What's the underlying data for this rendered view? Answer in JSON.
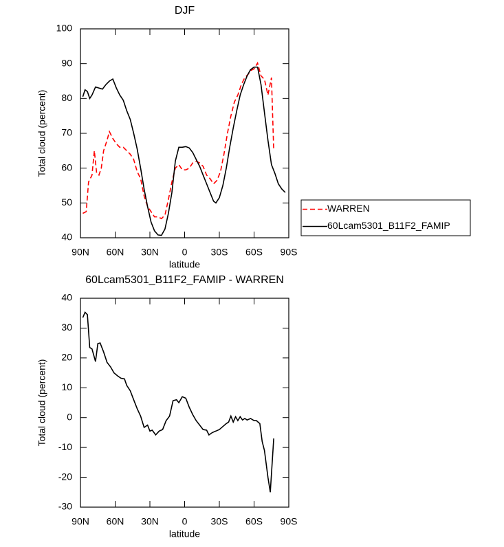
{
  "chart_data": [
    {
      "type": "line",
      "title": "DJF",
      "xlabel": "latitude",
      "ylabel": "Total cloud (percent)",
      "xlim": [
        90,
        -90
      ],
      "ylim": [
        40,
        100
      ],
      "xticks": [
        {
          "value": 90,
          "label": "90N"
        },
        {
          "value": 60,
          "label": "60N"
        },
        {
          "value": 30,
          "label": "30N"
        },
        0,
        {
          "value": -30,
          "label": "30S"
        },
        {
          "value": -60,
          "label": "60S"
        },
        {
          "value": -90,
          "label": "90S"
        }
      ],
      "yticks": [
        40,
        50,
        60,
        70,
        80,
        90,
        100
      ],
      "legend": "right",
      "series": [
        {
          "name": "WARREN",
          "color": "#ff0000",
          "linestyle": "dashed",
          "x": [
            88,
            85,
            83,
            80,
            78,
            76,
            74,
            72,
            70,
            67,
            65,
            62,
            59,
            56,
            53,
            50,
            47,
            44,
            41,
            38,
            35,
            32,
            29,
            26,
            23,
            20,
            17,
            14,
            11,
            8,
            5,
            2,
            -1,
            -4,
            -7,
            -10,
            -13,
            -16,
            -19,
            -22,
            -25,
            -28,
            -31,
            -34,
            -37,
            -40,
            -43,
            -46,
            -49,
            -52,
            -55,
            -57,
            -60,
            -63,
            -66,
            -69,
            -72,
            -75,
            -77
          ],
          "values": [
            47,
            47.5,
            56,
            58,
            65,
            58.5,
            58,
            60,
            65,
            68,
            70.5,
            68.5,
            67,
            66,
            66,
            65,
            64,
            62.5,
            59,
            57,
            52,
            49,
            47.5,
            46,
            46,
            45.5,
            46.5,
            51,
            56,
            60,
            61,
            59.5,
            59.5,
            60,
            61.5,
            62,
            61.5,
            60.5,
            58,
            57,
            55.5,
            56.5,
            59,
            64,
            70,
            75,
            79,
            81,
            84,
            86,
            87,
            88,
            88.5,
            90.2,
            86.5,
            85.5,
            81,
            86,
            65
          ]
        },
        {
          "name": "60Lcam5301_B11F2_FAMIP",
          "color": "#000000",
          "linestyle": "solid",
          "x": [
            88,
            86,
            84,
            82,
            80,
            77,
            74,
            71,
            68,
            65,
            62,
            59,
            56,
            53,
            50,
            47,
            44,
            41,
            38,
            35,
            32,
            29,
            26,
            23,
            20,
            17,
            14,
            11,
            8,
            5,
            2,
            -1,
            -4,
            -7,
            -10,
            -13,
            -16,
            -19,
            -22,
            -25,
            -27,
            -30,
            -33,
            -36,
            -39,
            -42,
            -45,
            -48,
            -51,
            -54,
            -57,
            -60,
            -63,
            -66,
            -69,
            -72,
            -75,
            -78,
            -81,
            -84,
            -87
          ],
          "values": [
            80.5,
            82.5,
            82,
            80,
            81,
            83.3,
            83,
            82.7,
            84,
            85,
            85.6,
            83,
            81,
            79.5,
            76.5,
            74,
            70,
            65.5,
            60,
            54,
            49,
            44.5,
            42,
            40.8,
            40.7,
            42.5,
            47,
            53,
            62,
            66,
            66,
            66.2,
            65.8,
            64.5,
            62.5,
            60.5,
            58,
            55.5,
            53,
            50.5,
            50,
            51.5,
            55,
            60,
            66,
            71.5,
            76.5,
            81,
            84,
            86.5,
            88.3,
            89,
            89,
            84,
            76,
            68,
            61,
            58.5,
            55.5,
            54,
            53
          ]
        }
      ]
    },
    {
      "type": "line",
      "title": "60Lcam5301_B11F2_FAMIP - WARREN",
      "xlabel": "latitude",
      "ylabel": "Total cloud (percent)",
      "xlim": [
        90,
        -90
      ],
      "ylim": [
        -30,
        40
      ],
      "xticks": [
        {
          "value": 90,
          "label": "90N"
        },
        {
          "value": 60,
          "label": "60N"
        },
        {
          "value": 30,
          "label": "30N"
        },
        0,
        {
          "value": -30,
          "label": "30S"
        },
        {
          "value": -60,
          "label": "60S"
        },
        {
          "value": -90,
          "label": "90S"
        }
      ],
      "yticks": [
        -30,
        -20,
        -10,
        0,
        10,
        20,
        30,
        40
      ],
      "color": "#000000",
      "x": [
        88,
        86,
        84,
        82,
        80,
        77,
        75,
        73,
        70,
        67,
        64,
        61,
        58,
        55,
        52,
        50,
        47,
        44,
        41,
        38,
        35,
        32,
        30,
        28,
        25,
        22,
        19,
        16,
        13,
        10,
        7,
        5,
        2,
        -1,
        -4,
        -7,
        -10,
        -13,
        -16,
        -19,
        -21,
        -24,
        -27,
        -30,
        -33,
        -36,
        -38,
        -40,
        -42,
        -44,
        -46,
        -48,
        -50,
        -52,
        -54,
        -57,
        -60,
        -62,
        -65,
        -67,
        -69,
        -72,
        -74,
        -77
      ],
      "values": [
        33.5,
        35.3,
        34.5,
        23.5,
        23,
        18.8,
        24.8,
        25,
        22,
        18.5,
        17,
        15,
        14,
        13.2,
        13,
        10.8,
        9,
        6,
        3,
        0.5,
        -3.3,
        -2.5,
        -4.5,
        -4.2,
        -5.8,
        -4.5,
        -4,
        -1,
        0.5,
        5.7,
        6,
        5,
        7,
        6.5,
        3.5,
        1,
        -1,
        -2.5,
        -4,
        -4.2,
        -5.8,
        -5,
        -4.5,
        -4,
        -3,
        -2,
        -1.5,
        0.5,
        -1.5,
        0.3,
        -1,
        0.3,
        -0.8,
        -0.3,
        -0.8,
        -0.3,
        -1,
        -1,
        -2,
        -8,
        -11,
        -20,
        -25,
        -7
      ]
    }
  ]
}
